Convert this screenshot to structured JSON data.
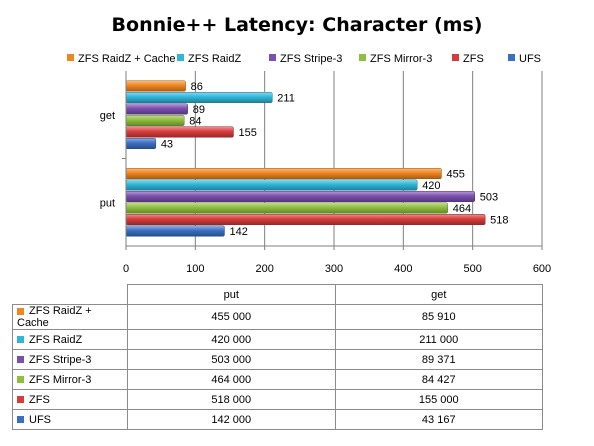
{
  "chart_data": {
    "type": "bar",
    "orientation": "horizontal",
    "title": "Bonnie++ Latency: Character (ms)",
    "categories": [
      "get",
      "put"
    ],
    "xlim": [
      0,
      600
    ],
    "xticks": [
      0,
      100,
      200,
      300,
      400,
      500,
      600
    ],
    "grid": true,
    "legend": "top",
    "series": [
      {
        "name": "ZFS RaidZ + Cache",
        "color": "#f0861e",
        "values": [
          86,
          455
        ],
        "table": {
          "put": "455 000",
          "get": "85 910"
        }
      },
      {
        "name": "ZFS RaidZ",
        "color": "#2fb6d8",
        "values": [
          211,
          420
        ],
        "table": {
          "put": "420 000",
          "get": "211 000"
        }
      },
      {
        "name": "ZFS Stripe-3",
        "color": "#7b4fb0",
        "values": [
          89,
          503
        ],
        "table": {
          "put": "503 000",
          "get": "89 371"
        }
      },
      {
        "name": "ZFS Mirror-3",
        "color": "#8fbf3c",
        "values": [
          84,
          464
        ],
        "table": {
          "put": "464 000",
          "get": "84 427"
        }
      },
      {
        "name": "ZFS",
        "color": "#d93b3b",
        "values": [
          155,
          518
        ],
        "table": {
          "put": "518 000",
          "get": "155 000"
        }
      },
      {
        "name": "UFS",
        "color": "#3a6fc4",
        "values": [
          43,
          142
        ],
        "table": {
          "put": "142 000",
          "get": "43 167"
        }
      }
    ],
    "table_columns": [
      "put",
      "get"
    ]
  }
}
